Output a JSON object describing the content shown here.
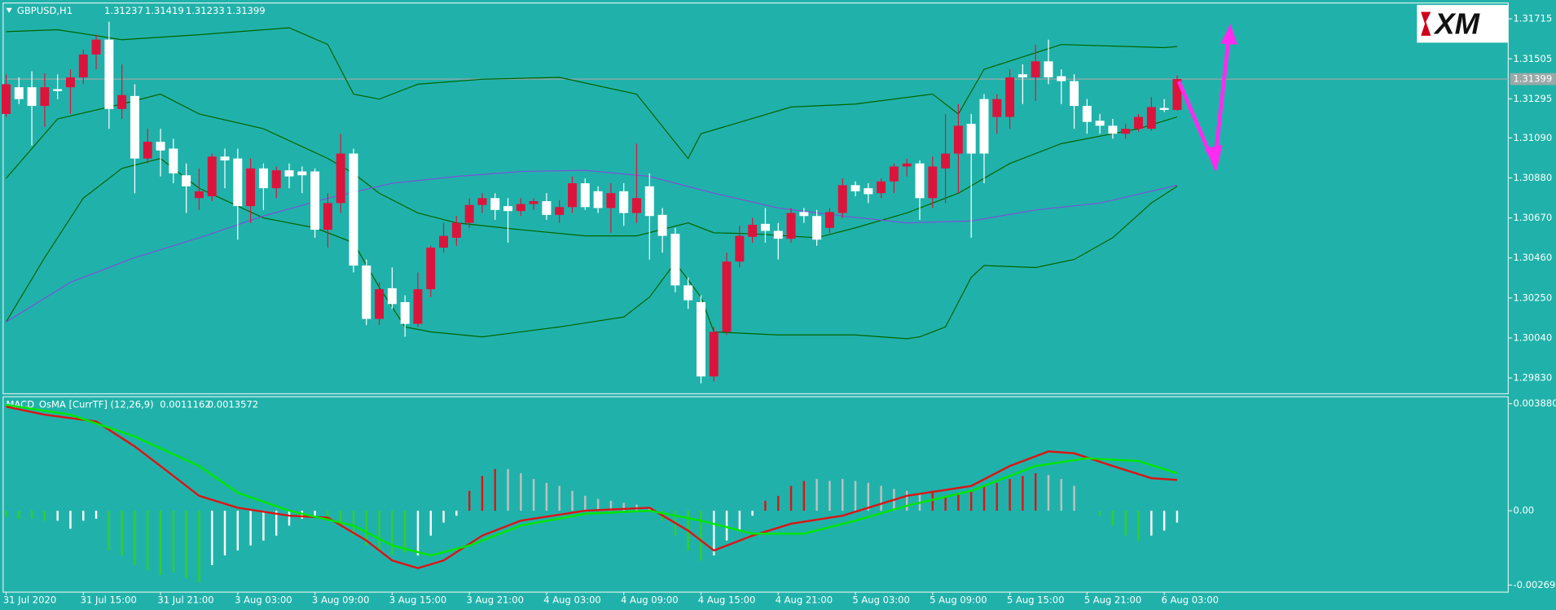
{
  "chart_data": [
    {
      "type": "candlestick",
      "title": "GBPUSD,H1",
      "logo": "XM",
      "categories": [
        "31 Jul 2020",
        null,
        null,
        null,
        null,
        null,
        "31 Jul 15:00",
        null,
        null,
        null,
        null,
        null,
        "31 Jul 21:00",
        null,
        null,
        null,
        null,
        null,
        "3 Aug 03:00",
        null,
        null,
        null,
        null,
        null,
        "3 Aug 09:00",
        null,
        null,
        null,
        null,
        null,
        "3 Aug 15:00",
        null,
        null,
        null,
        null,
        null,
        "3 Aug 21:00",
        null,
        null,
        null,
        null,
        null,
        "4 Aug 03:00",
        null,
        null,
        null,
        null,
        null,
        "4 Aug 09:00",
        null,
        null,
        null,
        null,
        null,
        "4 Aug 15:00",
        null,
        null,
        null,
        null,
        null,
        "4 Aug 21:00",
        null,
        null,
        null,
        null,
        null,
        "5 Aug 03:00",
        null,
        null,
        null,
        null,
        null,
        "5 Aug 09:00",
        null,
        null,
        null,
        null,
        null,
        "5 Aug 15:00",
        null,
        null,
        null,
        null,
        null,
        "5 Aug 21:00",
        null,
        null,
        null,
        null,
        null,
        "6 Aug 03:00",
        null
      ],
      "open": [
        1.31216,
        1.31356,
        1.31356,
        1.31258,
        1.31346,
        1.31356,
        1.31408,
        1.31528,
        1.31606,
        1.31242,
        1.3131,
        1.30982,
        1.3107,
        1.31034,
        1.30894,
        1.30774,
        1.30784,
        1.30992,
        1.30982,
        1.30732,
        1.3093,
        1.30826,
        1.3092,
        1.30914,
        1.30914,
        1.30608,
        1.30748,
        1.31008,
        1.3042,
        1.3014,
        1.30301,
        1.30228,
        1.30114,
        1.30296,
        1.30514,
        1.30566,
        1.30644,
        1.30738,
        1.30774,
        1.30732,
        1.30706,
        1.30743,
        1.30758,
        1.30686,
        1.30727,
        1.30852,
        1.3081,
        1.30722,
        1.3081,
        1.30696,
        1.30836,
        1.30686,
        1.30587,
        1.30316,
        1.30228,
        1.29838,
        1.30072,
        1.30441,
        1.30571,
        1.30639,
        1.30602,
        1.30561,
        1.30701,
        1.3068,
        1.30618,
        1.30696,
        1.30842,
        1.30826,
        1.308,
        1.30862,
        1.3094,
        1.30956,
        1.30774,
        1.3093,
        1.31008,
        1.31164,
        1.31294,
        1.312,
        1.312,
        1.31424,
        1.31408,
        1.31492,
        1.31414,
        1.31388,
        1.31258,
        1.3118,
        1.31154,
        1.31112,
        1.31138,
        1.31138,
        1.31247,
        1.31237
      ],
      "high": [
        1.31424,
        1.31408,
        1.3144,
        1.31429,
        1.31424,
        1.3145,
        1.31554,
        1.31632,
        1.317,
        1.31476,
        1.31372,
        1.31138,
        1.31138,
        1.31086,
        1.30956,
        1.3093,
        1.31008,
        1.31034,
        1.31034,
        1.30982,
        1.30956,
        1.3094,
        1.30956,
        1.3094,
        1.3093,
        1.308,
        1.31112,
        1.31034,
        1.30452,
        1.30332,
        1.3041,
        1.30264,
        1.30384,
        1.30524,
        1.30644,
        1.3068,
        1.30774,
        1.308,
        1.308,
        1.30774,
        1.30774,
        1.30774,
        1.308,
        1.30764,
        1.30888,
        1.30878,
        1.30836,
        1.30852,
        1.30852,
        1.3106,
        1.30904,
        1.30722,
        1.30618,
        1.30358,
        1.30264,
        1.30098,
        1.30488,
        1.30628,
        1.3067,
        1.30722,
        1.30644,
        1.30722,
        1.30722,
        1.30712,
        1.30722,
        1.30878,
        1.30862,
        1.30852,
        1.30878,
        1.30956,
        1.30982,
        1.30972,
        1.30992,
        1.31216,
        1.31268,
        1.31216,
        1.3132,
        1.3132,
        1.3145,
        1.31476,
        1.3158,
        1.31606,
        1.3145,
        1.31424,
        1.31294,
        1.31216,
        1.3119,
        1.31164,
        1.31216,
        1.31304,
        1.31294,
        1.31419
      ],
      "low": [
        1.312,
        1.31268,
        1.3105,
        1.31148,
        1.31294,
        1.31216,
        1.31372,
        1.3145,
        1.31138,
        1.3119,
        1.308,
        1.30956,
        1.30888,
        1.30852,
        1.30696,
        1.30712,
        1.30758,
        1.30826,
        1.30556,
        1.30644,
        1.30712,
        1.30774,
        1.30826,
        1.308,
        1.30566,
        1.30514,
        1.30696,
        1.30384,
        1.30108,
        1.30108,
        1.30192,
        1.30046,
        1.30098,
        1.30254,
        1.30488,
        1.30524,
        1.30618,
        1.30696,
        1.3066,
        1.3054,
        1.3068,
        1.30712,
        1.3066,
        1.30644,
        1.30696,
        1.30712,
        1.30696,
        1.30592,
        1.30628,
        1.30644,
        1.30452,
        1.30488,
        1.3028,
        1.30192,
        1.29802,
        1.29812,
        1.30056,
        1.3041,
        1.3054,
        1.3054,
        1.30452,
        1.3054,
        1.30644,
        1.30524,
        1.30592,
        1.3067,
        1.30784,
        1.30748,
        1.30774,
        1.308,
        1.30888,
        1.3066,
        1.30722,
        1.30748,
        1.308,
        1.30566,
        1.30852,
        1.31112,
        1.31138,
        1.31268,
        1.31284,
        1.31372,
        1.31268,
        1.31138,
        1.31112,
        1.31112,
        1.31086,
        1.31086,
        1.31122,
        1.31128,
        1.31226,
        1.31233
      ],
      "close": [
        1.31372,
        1.31294,
        1.31258,
        1.31356,
        1.31336,
        1.31408,
        1.31528,
        1.31606,
        1.31242,
        1.31315,
        1.30982,
        1.3107,
        1.31024,
        1.30904,
        1.30836,
        1.3081,
        1.30992,
        1.30972,
        1.30732,
        1.3093,
        1.30826,
        1.3092,
        1.30888,
        1.30894,
        1.30608,
        1.30748,
        1.31008,
        1.3042,
        1.3014,
        1.30296,
        1.30218,
        1.30114,
        1.30296,
        1.30514,
        1.30576,
        1.30644,
        1.30738,
        1.30774,
        1.30712,
        1.30706,
        1.30743,
        1.30758,
        1.30686,
        1.30727,
        1.30852,
        1.30727,
        1.30722,
        1.308,
        1.30696,
        1.30774,
        1.3068,
        1.30576,
        1.30316,
        1.30238,
        1.29838,
        1.30072,
        1.30441,
        1.30576,
        1.30634,
        1.30602,
        1.30561,
        1.30696,
        1.3068,
        1.30556,
        1.30701,
        1.30842,
        1.3081,
        1.30795,
        1.30862,
        1.3094,
        1.30956,
        1.30774,
        1.3094,
        1.31008,
        1.31154,
        1.31008,
        1.31008,
        1.31294,
        1.31408,
        1.31408,
        1.31492,
        1.31408,
        1.31388,
        1.31258,
        1.31174,
        1.31154,
        1.31112,
        1.31138,
        1.312,
        1.31252,
        1.31237,
        1.31399
      ],
      "up_color": "#dc143c",
      "down_color": "#ffffff",
      "bid_color": "#9aa8a8",
      "lines": [
        {
          "color": "#006400",
          "x": [
            0,
            4,
            9,
            15,
            22,
            25,
            27,
            29,
            32,
            37,
            43,
            49,
            53,
            54,
            61,
            66,
            72,
            74,
            76,
            82,
            90,
            91
          ],
          "values": [
            1.31648,
            1.31658,
            1.31606,
            1.31632,
            1.31668,
            1.3158,
            1.3132,
            1.31294,
            1.31372,
            1.31398,
            1.31408,
            1.3132,
            1.30982,
            1.31112,
            1.31252,
            1.31268,
            1.3132,
            1.31216,
            1.3145,
            1.3158,
            1.31564,
            1.3157
          ]
        },
        {
          "color": "#006400",
          "x": [
            0,
            4,
            9,
            12,
            15,
            20,
            25,
            27,
            29,
            32,
            35,
            40,
            45,
            49,
            53,
            55,
            58,
            63,
            66,
            70,
            74,
            78,
            82,
            88,
            91
          ],
          "values": [
            1.30878,
            1.3119,
            1.31268,
            1.3132,
            1.31216,
            1.31138,
            1.30982,
            1.30904,
            1.308,
            1.30696,
            1.30644,
            1.30608,
            1.30576,
            1.30576,
            1.30644,
            1.30592,
            1.30587,
            1.30566,
            1.30618,
            1.30696,
            1.308,
            1.30956,
            1.3106,
            1.31138,
            1.312
          ]
        },
        {
          "color": "#006400",
          "x": [
            0,
            3,
            6,
            9,
            12,
            15,
            20,
            24,
            27,
            29,
            31,
            33,
            37,
            43,
            48,
            50,
            52,
            54,
            55,
            60,
            66,
            70,
            71,
            73,
            75,
            76,
            80,
            83,
            86,
            89,
            91
          ],
          "values": [
            1.30124,
            1.30462,
            1.30774,
            1.3093,
            1.30982,
            1.30826,
            1.3067,
            1.30618,
            1.3054,
            1.30306,
            1.30098,
            1.30072,
            1.30046,
            1.30098,
            1.3015,
            1.30254,
            1.30436,
            1.30254,
            1.30072,
            1.30056,
            1.30056,
            1.30036,
            1.30046,
            1.30098,
            1.30358,
            1.3042,
            1.3041,
            1.30452,
            1.30566,
            1.30748,
            1.30836
          ]
        },
        {
          "color": "#7b52d6",
          "x": [
            0,
            5,
            10,
            15,
            20,
            25,
            30,
            35,
            40,
            45,
            50,
            55,
            60,
            65,
            70,
            75,
            80,
            85,
            91
          ],
          "values": [
            1.30124,
            1.30332,
            1.30462,
            1.30566,
            1.3068,
            1.30774,
            1.30852,
            1.30888,
            1.30914,
            1.3092,
            1.30888,
            1.308,
            1.30722,
            1.3068,
            1.30644,
            1.30654,
            1.30712,
            1.30748,
            1.30842
          ]
        }
      ],
      "ylim": [
        1.29747,
        1.31788
      ],
      "yticks": [
        1.31715,
        1.31505,
        1.31295,
        {
          "value": 1.3109,
          "label": "1.31090"
        },
        {
          "value": 1.3088,
          "label": "1.30880"
        },
        {
          "value": 1.3067,
          "label": "1.30670"
        },
        {
          "value": 1.3046,
          "label": "1.30460"
        },
        {
          "value": 1.3025,
          "label": "1.30250"
        },
        {
          "value": 1.3004,
          "label": "1.30040"
        },
        {
          "value": 1.2983,
          "label": "1.29830"
        }
      ]
    },
    {
      "type": "macd",
      "title": "MACD_OsMA [CurrTF] (12,26,9)",
      "histogram": [
        -0.00022,
        -0.00029,
        -0.00029,
        -0.00036,
        -0.00036,
        -0.00065,
        -0.00036,
        -0.00029,
        -0.00144,
        -0.00162,
        -0.00197,
        -0.00215,
        -0.00233,
        -0.00223,
        -0.00244,
        -0.00259,
        -0.00197,
        -0.00162,
        -0.00144,
        -0.00126,
        -0.00108,
        -0.0009,
        -0.00054,
        -0.00029,
        -0.00018,
        -0.00036,
        -0.00054,
        -0.0009,
        -0.00126,
        -0.00144,
        -0.00162,
        -0.00151,
        -0.00162,
        -0.0009,
        -0.00043,
        -0.00018,
        0.00072,
        0.00126,
        0.00151,
        0.00151,
        0.00136,
        0.00115,
        0.00101,
        0.0009,
        0.00072,
        0.00054,
        0.00043,
        0.00036,
        0.00029,
        0.00022,
        0.00011,
        -0.00036,
        -0.0009,
        -0.00144,
        -0.0018,
        -0.00162,
        -0.00108,
        -0.00072,
        -0.00018,
        0.00036,
        0.00054,
        0.0009,
        0.00108,
        0.00115,
        0.00108,
        0.00115,
        0.00108,
        0.00101,
        0.0009,
        0.00079,
        0.00072,
        0.00065,
        0.00072,
        0.00054,
        0.00065,
        0.00072,
        0.0009,
        0.00101,
        0.00115,
        0.00126,
        0.00136,
        0.00129,
        0.00115,
        0.0009,
        0,
        -0.00018,
        -0.00054,
        -0.0009,
        -0.00108,
        -0.0009,
        -0.00072,
        -0.00043
      ],
      "colors": [
        "#32cd32",
        "#32cd32",
        "#32cd32",
        "#32cd32",
        "#ffffff",
        "#ffffff",
        "#ffffff",
        "#ffffff",
        "#32cd32",
        "#32cd32",
        "#32cd32",
        "#32cd32",
        "#32cd32",
        "#32cd32",
        "#32cd32",
        "#32cd32",
        "#ffffff",
        "#ffffff",
        "#ffffff",
        "#ffffff",
        "#ffffff",
        "#ffffff",
        "#ffffff",
        "#ffffff",
        "#ffffff",
        "#32cd32",
        "#32cd32",
        "#32cd32",
        "#32cd32",
        "#32cd32",
        "#32cd32",
        "#32cd32",
        "#ffffff",
        "#ffffff",
        "#ffffff",
        "#ffffff",
        "#dc1414",
        "#dc1414",
        "#dc1414",
        "#c0c0c0",
        "#c0c0c0",
        "#c0c0c0",
        "#c0c0c0",
        "#c0c0c0",
        "#c0c0c0",
        "#c0c0c0",
        "#c0c0c0",
        "#c0c0c0",
        "#c0c0c0",
        "#c0c0c0",
        "#c0c0c0",
        "#32cd32",
        "#32cd32",
        "#32cd32",
        "#32cd32",
        "#ffffff",
        "#ffffff",
        "#ffffff",
        "#ffffff",
        "#dc1414",
        "#dc1414",
        "#dc1414",
        "#dc1414",
        "#c0c0c0",
        "#c0c0c0",
        "#c0c0c0",
        "#c0c0c0",
        "#c0c0c0",
        "#c0c0c0",
        "#c0c0c0",
        "#c0c0c0",
        "#c0c0c0",
        "#dc1414",
        "#dc1414",
        "#dc1414",
        "#dc1414",
        "#dc1414",
        "#dc1414",
        "#dc1414",
        "#dc1414",
        "#dc1414",
        "#c0c0c0",
        "#c0c0c0",
        "#c0c0c0",
        "#c0c0c0",
        "#32cd32",
        "#32cd32",
        "#32cd32",
        "#32cd32",
        "#ffffff",
        "#ffffff",
        "#ffffff"
      ],
      "lines": [
        {
          "color": "#dc1414",
          "x": [
            0,
            3,
            7,
            10,
            12,
            15,
            18,
            22,
            25,
            28,
            30,
            32,
            34,
            37,
            40,
            45,
            50,
            53,
            55,
            58,
            61,
            65,
            70,
            75,
            78,
            81,
            83,
            86,
            89,
            91
          ],
          "values": [
            0.00377,
            0.00348,
            0.00323,
            0.00233,
            0.00162,
            0.00054,
            0.00011,
            -0.00018,
            -0.00025,
            -0.00108,
            -0.0018,
            -0.00208,
            -0.0018,
            -0.0009,
            -0.00036,
            0,
            0.00011,
            -0.00072,
            -0.00144,
            -0.0009,
            -0.00047,
            -0.00018,
            0.00054,
            0.0009,
            0.00162,
            0.00215,
            0.00208,
            0.00162,
            0.00118,
            0.0011162
          ]
        },
        {
          "color": "#00e600",
          "x": [
            0,
            5,
            10,
            15,
            18,
            22,
            27,
            30,
            33,
            36,
            40,
            45,
            50,
            54,
            58,
            62,
            66,
            70,
            75,
            80,
            84,
            88,
            91
          ],
          "values": [
            0.00384,
            0.00348,
            0.00269,
            0.00162,
            0.00065,
            0,
            -0.00054,
            -0.00126,
            -0.00162,
            -0.00126,
            -0.00054,
            -0.00011,
            0,
            -0.00036,
            -0.00083,
            -0.00083,
            -0.00036,
            0.00018,
            0.00072,
            0.00162,
            0.0019,
            0.0018,
            0.0013572
          ]
        }
      ],
      "ylim": [
        -0.00295,
        0.00413
      ],
      "yticks": [
        {
          "value": 0.00388,
          "label": "0.003880"
        },
        {
          "value": 0,
          "label": "0.00"
        },
        {
          "value": -0.002694,
          "label": "-0.002694"
        }
      ]
    }
  ]
}
